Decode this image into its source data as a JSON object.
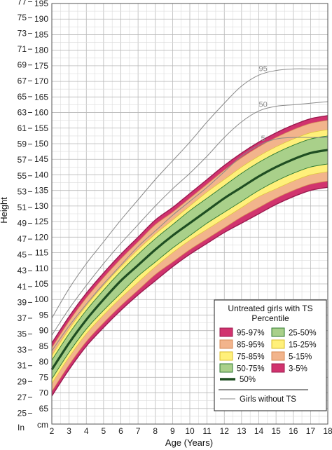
{
  "chart_data": {
    "type": "line",
    "xlabel": "Age (Years)",
    "ylabel": "Height",
    "x_ticks": [
      2,
      3,
      4,
      5,
      6,
      7,
      8,
      9,
      10,
      11,
      12,
      13,
      14,
      15,
      16,
      17,
      18
    ],
    "xlim": [
      2,
      18
    ],
    "ylim_cm": [
      60,
      195
    ],
    "y_ticks_cm": [
      65,
      70,
      75,
      80,
      85,
      90,
      95,
      100,
      105,
      110,
      115,
      120,
      125,
      130,
      135,
      140,
      145,
      150,
      155,
      160,
      165,
      170,
      175,
      180,
      185,
      190,
      195
    ],
    "y_ticks_in": [
      25,
      27,
      29,
      31,
      33,
      35,
      37,
      39,
      41,
      43,
      45,
      47,
      49,
      51,
      53,
      55,
      57,
      59,
      61,
      63,
      65,
      67,
      69,
      71,
      73,
      75,
      77
    ],
    "y_unit_in": "In",
    "y_unit_cm": "cm",
    "grid": true,
    "x": [
      2,
      3,
      4,
      5,
      6,
      7,
      8,
      9,
      10,
      11,
      12,
      13,
      14,
      15,
      16,
      17,
      18
    ],
    "ts_bands": [
      {
        "name": "95-97%",
        "color": "#d1336e",
        "lower": [
          84.5,
          93,
          100.5,
          107,
          113,
          118.5,
          124,
          128,
          132.5,
          137,
          141.5,
          145.5,
          149,
          152,
          154.5,
          156.5,
          157.5
        ],
        "upper": [
          86,
          94.5,
          102,
          108.5,
          114.5,
          120,
          125.5,
          129.5,
          134,
          138.5,
          143,
          147,
          150.5,
          153.5,
          156,
          158,
          159
        ]
      },
      {
        "name": "85-95%",
        "color": "#f2b48c",
        "lower": [
          82,
          90.5,
          98,
          104.5,
          110.5,
          116,
          121,
          125.5,
          130,
          134.5,
          138.5,
          142.5,
          146,
          149,
          151.5,
          153.5,
          154.5
        ],
        "upper": [
          84.5,
          93,
          100.5,
          107,
          113,
          118.5,
          124,
          128,
          132.5,
          137,
          141.5,
          145.5,
          149,
          152,
          154.5,
          156.5,
          157.5
        ]
      },
      {
        "name": "75-85%",
        "color": "#fff07a",
        "lower": [
          80.5,
          89,
          96.5,
          103,
          109,
          114.5,
          119.5,
          124,
          128.5,
          132.5,
          136.5,
          140.5,
          144,
          147,
          149.5,
          151.5,
          152.5
        ],
        "upper": [
          82,
          90.5,
          98,
          104.5,
          110.5,
          116,
          121,
          125.5,
          130,
          134.5,
          138.5,
          142.5,
          146,
          149,
          151.5,
          153.5,
          154.5
        ]
      },
      {
        "name": "50-75%",
        "color": "#a9d08a",
        "lower": [
          77.5,
          86,
          93.5,
          100,
          106,
          111,
          116,
          120.5,
          124.5,
          128.5,
          132.5,
          136,
          139.5,
          142.5,
          145,
          147,
          148
        ]
      },
      {
        "name": "25-50%",
        "color": "#a9d08a",
        "lower": [
          74.5,
          83,
          90.5,
          96.5,
          102,
          107.5,
          112,
          116.5,
          120.5,
          124.5,
          128,
          131.5,
          135,
          138,
          140.5,
          142.5,
          143.5
        ]
      },
      {
        "name": "15-25%",
        "color": "#fff07a",
        "lower": [
          73,
          81.5,
          89,
          95,
          100.5,
          105.5,
          110.5,
          115,
          119,
          122.5,
          126,
          129.5,
          133,
          135.5,
          138,
          140,
          141
        ]
      },
      {
        "name": "5-15%",
        "color": "#f2b48c",
        "lower": [
          70.5,
          79,
          86.5,
          92.5,
          98,
          103,
          108,
          112,
          116,
          119.5,
          123,
          126.5,
          129.5,
          132.5,
          135,
          137,
          138
        ]
      },
      {
        "name": "3-5%",
        "color": "#d1336e",
        "lower": [
          69,
          77.5,
          85,
          91,
          96.5,
          101.5,
          106,
          110.5,
          114.5,
          118,
          121.5,
          124.5,
          127.5,
          130.5,
          133,
          135,
          136
        ]
      }
    ],
    "upper_50_75": [
      80.5,
      89,
      96.5,
      103,
      109,
      114.5,
      119.5,
      124,
      128.5,
      132.5,
      136.5,
      140.5,
      144,
      147,
      149.5,
      151.5,
      152.5
    ],
    "median": {
      "name": "50%",
      "color": "#1f4e22",
      "values": [
        77.5,
        86,
        93.5,
        100,
        106,
        111,
        116,
        120.5,
        124.5,
        128.5,
        132.5,
        136,
        139.5,
        142.5,
        145,
        147,
        148
      ]
    },
    "reference": [
      {
        "name": "95",
        "values": [
          94,
          103.5,
          111.5,
          118.5,
          125.5,
          132,
          138.5,
          144.5,
          150.5,
          157,
          163,
          168.5,
          172,
          173.5,
          174,
          174,
          174
        ]
      },
      {
        "name": "50",
        "values": [
          88.5,
          97,
          104.5,
          111.5,
          118,
          124,
          130,
          135.5,
          140.5,
          146,
          152,
          157,
          160.5,
          162,
          162.5,
          163,
          163.5
        ]
      },
      {
        "name": "5",
        "values": [
          83.5,
          91.5,
          98.5,
          105,
          111,
          117,
          122,
          127,
          131.5,
          136,
          141,
          146,
          149.5,
          151.5,
          152,
          152,
          152
        ]
      }
    ],
    "reference_color": "#8a8a8a",
    "legend": {
      "title_line1": "Untreated girls with TS",
      "title_line2": "Percentile",
      "position": "bottom-right",
      "items": [
        {
          "label": "95-97%",
          "color": "#d1336e"
        },
        {
          "label": "25-50%",
          "color": "#a9d08a"
        },
        {
          "label": "85-95%",
          "color": "#f2b48c"
        },
        {
          "label": "15-25%",
          "color": "#fff07a"
        },
        {
          "label": "75-85%",
          "color": "#fff07a"
        },
        {
          "label": "5-15%",
          "color": "#f2b48c"
        },
        {
          "label": "50-75%",
          "color": "#a9d08a"
        },
        {
          "label": "3-5%",
          "color": "#d1336e"
        }
      ],
      "median_label": "50%",
      "reference_label": "Girls without TS"
    }
  }
}
